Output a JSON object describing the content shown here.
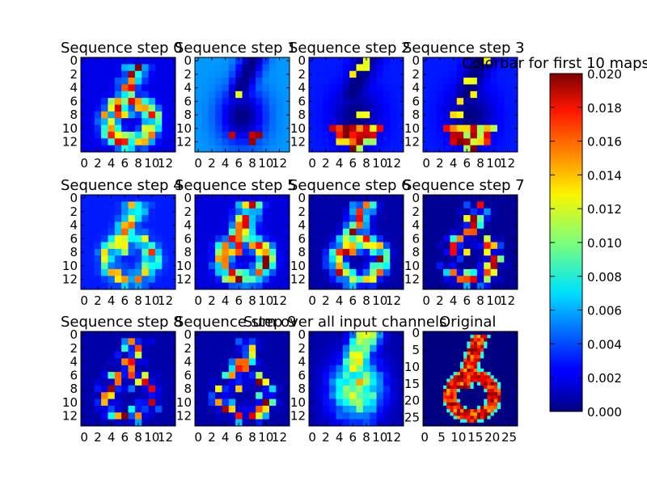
{
  "chart_data": {
    "type": "heatmap",
    "colormap": "jet",
    "panels": [
      {
        "title": "Sequence step 0",
        "size": 14,
        "xticks": [
          0,
          2,
          4,
          6,
          8,
          10,
          12
        ],
        "yticks": [
          0,
          2,
          4,
          6,
          8,
          10,
          12
        ],
        "pattern": "six-edge",
        "background": 0.002
      },
      {
        "title": "Sequence step 1",
        "size": 14,
        "xticks": [
          0,
          2,
          4,
          6,
          8,
          10,
          12
        ],
        "yticks": [
          0,
          2,
          4,
          6,
          8,
          10,
          12
        ],
        "pattern": "six-fill",
        "background": 0.0055
      },
      {
        "title": "Sequence step 2",
        "size": 14,
        "xticks": [
          0,
          2,
          4,
          6,
          8,
          10,
          12
        ],
        "yticks": [
          0,
          2,
          4,
          6,
          8,
          10,
          12
        ],
        "pattern": "six-fill-bottom",
        "background": 0.003
      },
      {
        "title": "Sequence step 3",
        "size": 14,
        "xticks": [
          0,
          2,
          4,
          6,
          8,
          10,
          12
        ],
        "yticks": [
          0,
          2,
          4,
          6,
          8,
          10,
          12
        ],
        "pattern": "six-fill-bottom",
        "background": 0.003
      },
      {
        "title": "Sequence step 4",
        "size": 14,
        "xticks": [
          0,
          2,
          4,
          6,
          8,
          10,
          12
        ],
        "yticks": [
          0,
          2,
          4,
          6,
          8,
          10,
          12
        ],
        "pattern": "six-edge-light",
        "background": 0.003
      },
      {
        "title": "Sequence step 5",
        "size": 14,
        "xticks": [
          0,
          2,
          4,
          6,
          8,
          10,
          12
        ],
        "yticks": [
          0,
          2,
          4,
          6,
          8,
          10,
          12
        ],
        "pattern": "six-edge",
        "background": 0.0018
      },
      {
        "title": "Sequence step 6",
        "size": 14,
        "xticks": [
          0,
          2,
          4,
          6,
          8,
          10,
          12
        ],
        "yticks": [
          0,
          2,
          4,
          6,
          8,
          10,
          12
        ],
        "pattern": "six-edge",
        "background": 0.0008
      },
      {
        "title": "Sequence step 7",
        "size": 14,
        "xticks": [
          0,
          2,
          4,
          6,
          8,
          10,
          12
        ],
        "yticks": [
          0,
          2,
          4,
          6,
          8,
          10,
          12
        ],
        "pattern": "six-edge-sparse",
        "background": 0.0004
      },
      {
        "title": "Sequence step 8",
        "size": 14,
        "xticks": [
          0,
          2,
          4,
          6,
          8,
          10,
          12
        ],
        "yticks": [
          0,
          2,
          4,
          6,
          8,
          10,
          12
        ],
        "pattern": "six-edge-sparse",
        "background": 0.0008
      },
      {
        "title": "Sequence step 9",
        "size": 14,
        "xticks": [
          0,
          2,
          4,
          6,
          8,
          10,
          12
        ],
        "yticks": [
          0,
          2,
          4,
          6,
          8,
          10,
          12
        ],
        "pattern": "six-edge-sparse",
        "background": 0.0008
      },
      {
        "title": "Sum over all input channels",
        "size": 14,
        "xticks": [
          0,
          2,
          4,
          6,
          8,
          10,
          12
        ],
        "yticks": [
          0,
          2,
          4,
          6,
          8,
          10,
          12
        ],
        "pattern": "six-blob",
        "background": 0.0008
      },
      {
        "title": "Original",
        "size": 28,
        "xticks": [
          0,
          5,
          10,
          15,
          20,
          25
        ],
        "yticks": [
          0,
          5,
          10,
          15,
          20,
          25
        ],
        "pattern": "digit-six",
        "background": 0.0
      }
    ],
    "colorbar": {
      "title": "Colorbar for first 10 maps",
      "min": 0.0,
      "max": 0.02,
      "ticks": [
        "0.000",
        "0.002",
        "0.004",
        "0.006",
        "0.008",
        "0.010",
        "0.012",
        "0.014",
        "0.016",
        "0.018",
        "0.020"
      ]
    }
  }
}
